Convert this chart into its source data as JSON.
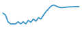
{
  "x": [
    0,
    1,
    2,
    3,
    4,
    5,
    6,
    7,
    8,
    9,
    10,
    11,
    12,
    13,
    14,
    15,
    16,
    17,
    18,
    19,
    20,
    21,
    22,
    23,
    24,
    25,
    26,
    27,
    28,
    29,
    30
  ],
  "y": [
    0.62,
    0.55,
    0.3,
    0.22,
    0.22,
    0.22,
    0.3,
    0.22,
    0.3,
    0.22,
    0.35,
    0.28,
    0.4,
    0.32,
    0.45,
    0.4,
    0.55,
    0.68,
    0.78,
    0.88,
    0.92,
    0.88,
    0.84,
    0.82,
    0.83,
    0.84,
    0.85,
    0.85,
    0.86,
    0.86,
    0.86
  ],
  "line_color": "#2b8cc4",
  "line_width": 1.2,
  "background_color": "#ffffff",
  "ylim": [
    0.05,
    1.05
  ],
  "xlim": [
    -0.5,
    30.5
  ]
}
